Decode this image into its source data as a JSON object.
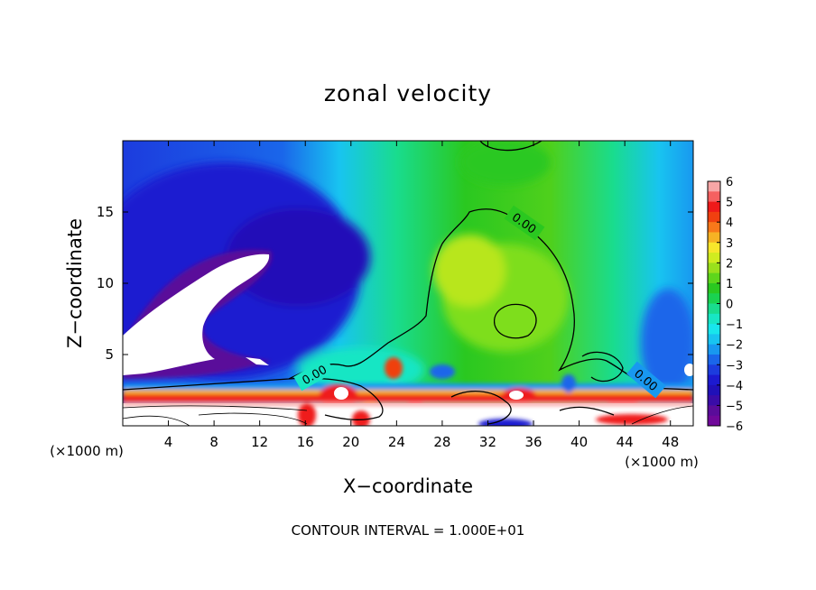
{
  "chart_data": {
    "type": "heatmap",
    "title": "zonal velocity",
    "xlabel": "X−coordinate",
    "ylabel": "Z−coordinate",
    "x_unit_label_left": "(×1000 m)",
    "x_unit_label_right": "(×1000 m)",
    "xlim": [
      0,
      50
    ],
    "ylim": [
      0,
      20
    ],
    "x_ticks": [
      4,
      8,
      12,
      16,
      20,
      24,
      28,
      32,
      36,
      40,
      44,
      48
    ],
    "y_ticks": [
      5,
      10,
      15
    ],
    "colorbar": {
      "min": -6,
      "max": 6,
      "ticks": [
        "6",
        "5",
        "4",
        "3",
        "2",
        "1",
        "0",
        "−1",
        "−2",
        "−3",
        "−4",
        "−5",
        "−6"
      ],
      "colors": [
        "#f7a6a6",
        "#f56060",
        "#ef1a1a",
        "#f04010",
        "#f8781a",
        "#f6b224",
        "#f7e62b",
        "#d0ec20",
        "#9ae01c",
        "#5ed61c",
        "#2ac820",
        "#1ad250",
        "#19dc8e",
        "#18e6c4",
        "#18e6ec",
        "#18c4f0",
        "#1898f0",
        "#1a66ea",
        "#1c3cde",
        "#1c1ad0",
        "#2010b8",
        "#3a0ca8",
        "#5a0c9a",
        "#70089a"
      ]
    },
    "contour_labels": [
      "0.00",
      "0.00",
      "0.00"
    ],
    "footer": "CONTOUR INTERVAL = 1.000E+01"
  }
}
